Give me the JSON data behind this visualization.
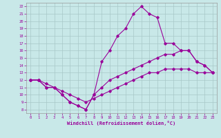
{
  "title": "",
  "xlabel": "Windchill (Refroidissement éolien,°C)",
  "ylabel": "",
  "background_color": "#c8e8e8",
  "grid_color": "#a8c8c8",
  "line_color": "#990099",
  "xlim": [
    -0.5,
    23.5
  ],
  "ylim": [
    7.5,
    22.5
  ],
  "xticks": [
    0,
    1,
    2,
    3,
    4,
    5,
    6,
    7,
    8,
    9,
    10,
    11,
    12,
    13,
    14,
    15,
    16,
    17,
    18,
    19,
    20,
    21,
    22,
    23
  ],
  "yticks": [
    8,
    9,
    10,
    11,
    12,
    13,
    14,
    15,
    16,
    17,
    18,
    19,
    20,
    21,
    22
  ],
  "curve1_x": [
    0,
    1,
    2,
    3,
    4,
    5,
    6,
    7,
    8,
    9,
    10,
    11,
    12,
    13,
    14,
    15,
    16,
    17,
    18,
    19,
    20,
    21,
    22,
    23
  ],
  "curve1_y": [
    12,
    12,
    11,
    11,
    10,
    9,
    8.5,
    8,
    10,
    14.5,
    16,
    18,
    19,
    21,
    22,
    21,
    20.5,
    17,
    17,
    16,
    16,
    14.5,
    14,
    13
  ],
  "curve2_x": [
    0,
    1,
    2,
    3,
    4,
    5,
    6,
    7,
    8,
    9,
    10,
    11,
    12,
    13,
    14,
    15,
    16,
    17,
    18,
    19,
    20,
    21,
    22,
    23
  ],
  "curve2_y": [
    12,
    12,
    11,
    11,
    10,
    9,
    8.5,
    8,
    10,
    11,
    12,
    12.5,
    13,
    13.5,
    14,
    14.5,
    15,
    15.5,
    15.5,
    16,
    16,
    14.5,
    14,
    13
  ],
  "curve3_x": [
    0,
    1,
    2,
    3,
    4,
    5,
    6,
    7,
    8,
    9,
    10,
    11,
    12,
    13,
    14,
    15,
    16,
    17,
    18,
    19,
    20,
    21,
    22,
    23
  ],
  "curve3_y": [
    12,
    12,
    11.5,
    11,
    10.5,
    10,
    9.5,
    9,
    9.5,
    10,
    10.5,
    11,
    11.5,
    12,
    12.5,
    13,
    13,
    13.5,
    13.5,
    13.5,
    13.5,
    13,
    13,
    13
  ],
  "tick_fontsize": 4.0,
  "xlabel_fontsize": 5.0,
  "marker_size": 1.8,
  "linewidth": 0.8
}
